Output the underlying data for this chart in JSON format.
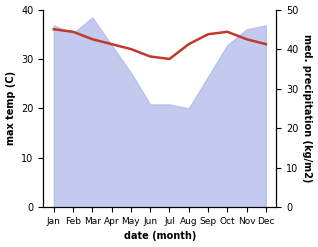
{
  "months": [
    "Jan",
    "Feb",
    "Mar",
    "Apr",
    "May",
    "Jun",
    "Jul",
    "Aug",
    "Sep",
    "Oct",
    "Nov",
    "Dec"
  ],
  "precipitation": [
    46,
    44,
    48,
    41,
    34,
    26,
    26,
    25,
    33,
    41,
    45,
    46
  ],
  "temperature": [
    36,
    35.5,
    34,
    33,
    32,
    30.5,
    30,
    33,
    35,
    35.5,
    34,
    33
  ],
  "precip_color": "#aab4e8",
  "temp_color": "#c0392b",
  "ylabel_left": "max temp (C)",
  "ylabel_right": "med. precipitation (kg/m2)",
  "xlabel": "date (month)",
  "ylim_left": [
    0,
    40
  ],
  "ylim_right": [
    0,
    50
  ],
  "yticks_left": [
    0,
    10,
    20,
    30,
    40
  ],
  "yticks_right": [
    0,
    10,
    20,
    30,
    40,
    50
  ]
}
